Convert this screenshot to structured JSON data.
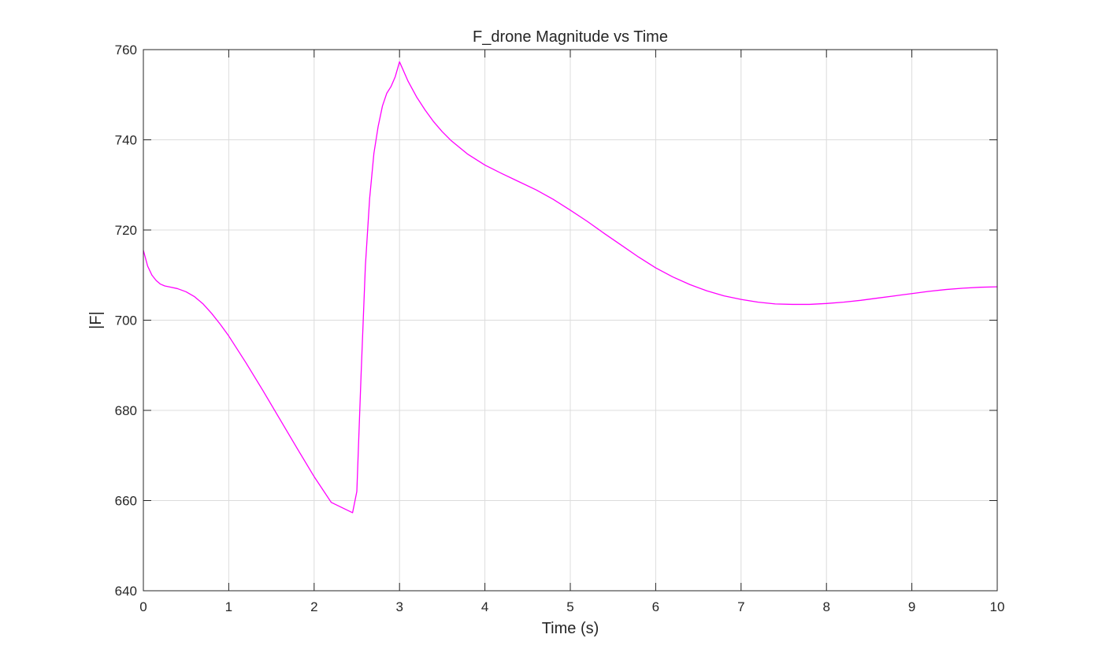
{
  "chart_data": {
    "type": "line",
    "title": "F_drone Magnitude vs Time",
    "xlabel": "Time (s)",
    "ylabel": "|F|",
    "xlim": [
      0,
      10
    ],
    "ylim": [
      640,
      760
    ],
    "xticks": [
      0,
      1,
      2,
      3,
      4,
      5,
      6,
      7,
      8,
      9,
      10
    ],
    "yticks": [
      640,
      660,
      680,
      700,
      720,
      740,
      760
    ],
    "xtick_labels": [
      "0",
      "1",
      "2",
      "3",
      "4",
      "5",
      "6",
      "7",
      "8",
      "9",
      "10"
    ],
    "ytick_labels": [
      "640",
      "660",
      "680",
      "700",
      "720",
      "740",
      "760"
    ],
    "grid": true,
    "box": true,
    "colors": {
      "line": "#ff00ff",
      "grid": "#dcdcdc",
      "axis": "#262626"
    },
    "series": [
      {
        "x": [
          0,
          0.05,
          0.1,
          0.15,
          0.2,
          0.25,
          0.3,
          0.4,
          0.5,
          0.6,
          0.7,
          0.8,
          0.9,
          1.0,
          1.2,
          1.4,
          1.6,
          1.8,
          2.0,
          2.2,
          2.45,
          2.5,
          2.55,
          2.6,
          2.65,
          2.7,
          2.75,
          2.8,
          2.85,
          2.9,
          2.95,
          3.0,
          3.1,
          3.2,
          3.3,
          3.4,
          3.5,
          3.6,
          3.8,
          4.0,
          4.2,
          4.4,
          4.6,
          4.8,
          5.0,
          5.2,
          5.4,
          5.6,
          5.8,
          6.0,
          6.2,
          6.4,
          6.6,
          6.8,
          7.0,
          7.2,
          7.4,
          7.6,
          7.8,
          8.0,
          8.2,
          8.4,
          8.6,
          8.8,
          9.0,
          9.2,
          9.4,
          9.6,
          9.8,
          10.0
        ],
        "y": [
          715.5,
          712.0,
          710.0,
          708.8,
          708.0,
          707.6,
          707.4,
          707.0,
          706.3,
          705.2,
          703.6,
          701.5,
          699.1,
          696.5,
          690.6,
          684.4,
          678.0,
          671.6,
          665.3,
          659.6,
          657.3,
          662.0,
          688.0,
          712.0,
          727.0,
          737.0,
          743.0,
          747.5,
          750.3,
          751.8,
          754.0,
          757.3,
          753.0,
          749.5,
          746.6,
          744.0,
          741.8,
          739.9,
          736.8,
          734.4,
          732.5,
          730.7,
          728.9,
          726.8,
          724.4,
          721.9,
          719.2,
          716.6,
          714.0,
          711.6,
          709.6,
          707.9,
          706.5,
          705.4,
          704.6,
          704.0,
          703.6,
          703.5,
          703.5,
          703.7,
          704.0,
          704.4,
          704.9,
          705.4,
          705.9,
          706.4,
          706.8,
          707.1,
          707.3,
          707.4
        ]
      }
    ]
  }
}
